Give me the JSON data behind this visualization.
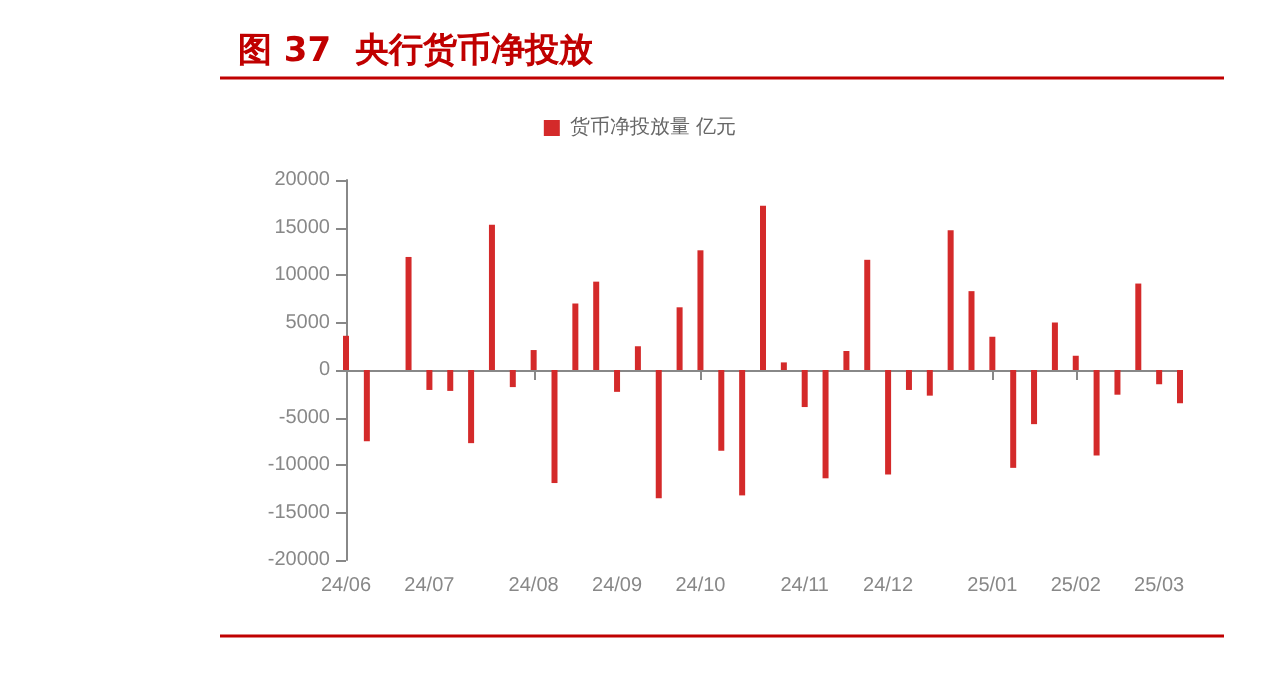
{
  "chart_data": {
    "type": "bar",
    "title": "图 37  央行货币净投放",
    "categories": [
      "24/06",
      null,
      null,
      null,
      "24/07",
      null,
      null,
      null,
      null,
      "24/08",
      null,
      null,
      null,
      "24/09",
      null,
      null,
      null,
      "24/10",
      null,
      null,
      null,
      null,
      "24/11",
      null,
      null,
      null,
      "24/12",
      null,
      null,
      null,
      null,
      "25/01",
      null,
      null,
      null,
      "25/02",
      null,
      null,
      null,
      "25/03",
      null
    ],
    "series": [
      {
        "name": "货币净投放量 亿元",
        "color": "#d42a2a",
        "values": [
          3600,
          -7500,
          null,
          11900,
          -2100,
          -2200,
          -7700,
          15300,
          -1800,
          2100,
          -11900,
          7000,
          9300,
          -2300,
          2500,
          -13500,
          6600,
          12600,
          -8500,
          -13200,
          17300,
          800,
          -3900,
          -11400,
          2000,
          11600,
          -11000,
          -2100,
          -2700,
          14700,
          8300,
          3500,
          -10300,
          -5700,
          5000,
          1500,
          -9000,
          -2600,
          9100,
          -1500,
          -3500
        ]
      }
    ],
    "ylim": [
      -20000,
      20000
    ],
    "yticks": [
      -20000,
      -15000,
      -10000,
      -5000,
      0,
      5000,
      10000,
      15000,
      20000
    ],
    "legend": "top"
  }
}
